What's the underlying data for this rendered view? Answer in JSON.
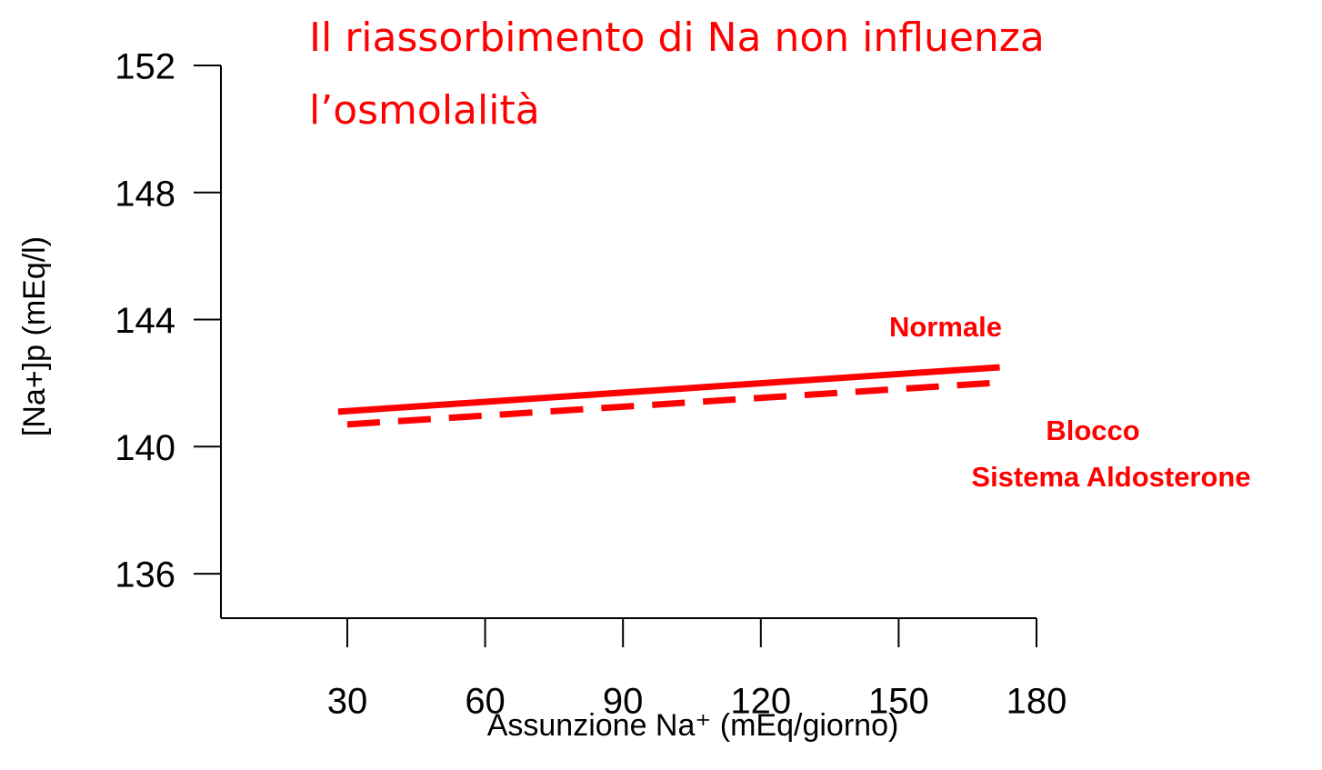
{
  "chart_data": {
    "type": "line",
    "title": [
      "Il riassorbimento di Na non influenza",
      "l’osmolalità"
    ],
    "x_label": "Assunzione Na⁺ (mEq/giorno)",
    "y_label": "[Na+]p (mEq/l)",
    "xlim": [
      2.5,
      180
    ],
    "ylim": [
      134.6,
      152
    ],
    "xticks": [
      30,
      60,
      90,
      120,
      150,
      180
    ],
    "yticks": [
      136,
      140,
      144,
      148,
      152
    ],
    "series": [
      {
        "name": "Normale",
        "color": "#ff0000",
        "dash": false,
        "x": [
          28,
          172
        ],
        "values": [
          141.1,
          142.5
        ]
      },
      {
        "color": "#ff0000",
        "dash": true,
        "x": [
          30,
          170
        ],
        "values": [
          140.7,
          142.0
        ]
      }
    ],
    "annotations": [
      "Blocco",
      "Sistema Aldosterone"
    ]
  }
}
